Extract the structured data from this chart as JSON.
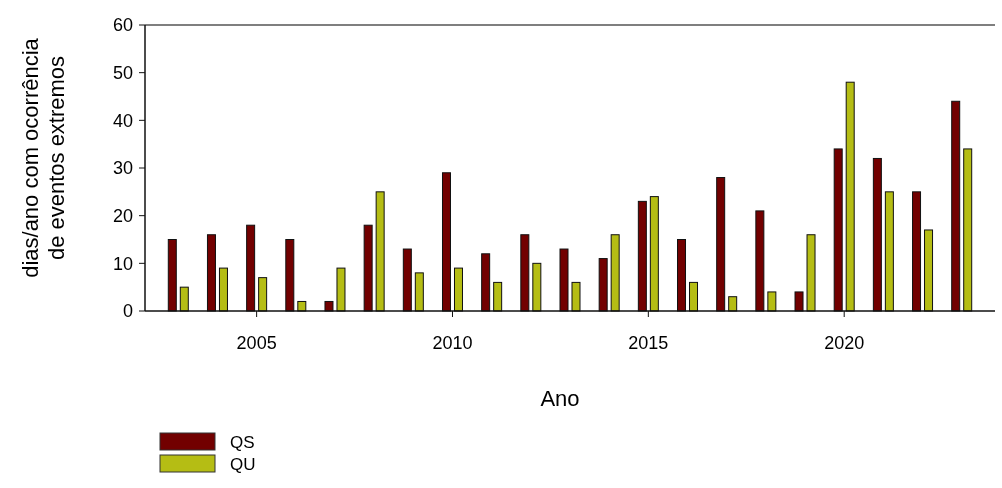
{
  "chart_data": {
    "type": "bar",
    "xlabel": "Ano",
    "ylabel": "dias/ano com ocorrência de eventos extremos",
    "x": [
      2003,
      2004,
      2005,
      2006,
      2007,
      2008,
      2009,
      2010,
      2011,
      2012,
      2013,
      2014,
      2015,
      2016,
      2017,
      2018,
      2019,
      2020,
      2021,
      2022,
      2023
    ],
    "series": [
      {
        "name": "QS",
        "color": "#720000",
        "values": [
          15,
          16,
          18,
          15,
          2,
          18,
          13,
          29,
          12,
          16,
          13,
          11,
          23,
          15,
          28,
          21,
          4,
          34,
          32,
          25,
          44
        ]
      },
      {
        "name": "QU",
        "color": "#b5bd14",
        "values": [
          5,
          9,
          7,
          2,
          9,
          25,
          8,
          9,
          6,
          10,
          6,
          16,
          24,
          6,
          3,
          4,
          16,
          48,
          25,
          17,
          34
        ]
      }
    ],
    "xlim": [
      2002.15,
      2023.85
    ],
    "xticks": [
      2005,
      2010,
      2015,
      2020
    ],
    "ylim": [
      0,
      60
    ],
    "yticks": [
      0,
      10,
      20,
      30,
      40,
      50,
      60
    ],
    "grid": false,
    "legend": "bottom left"
  }
}
